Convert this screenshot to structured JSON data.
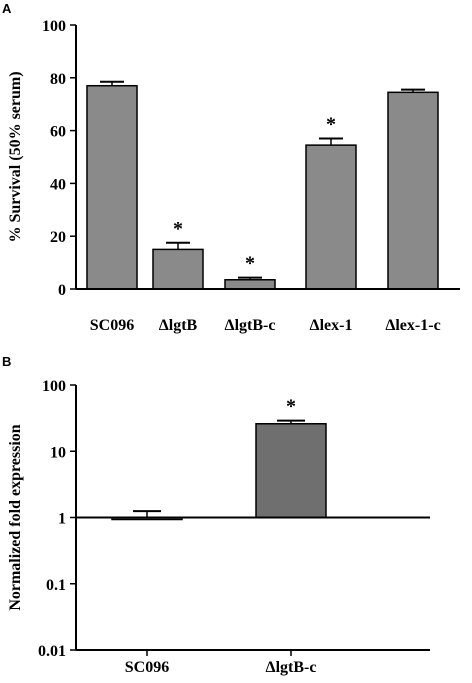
{
  "chart_data": [
    {
      "panel": "A",
      "type": "bar",
      "categories": [
        "SC096",
        "ΔlgtB",
        "ΔlgtB-c",
        "Δlex-1",
        "Δlex-1-c"
      ],
      "values": [
        77,
        15,
        3.5,
        54.5,
        74.5
      ],
      "errors": [
        1.5,
        2.5,
        0.8,
        2.5,
        1
      ],
      "significance": [
        "",
        "*",
        "*",
        "*",
        ""
      ],
      "ylabel": "% Survival (50% serum)",
      "xlabel": "",
      "title": "",
      "ylim": [
        0,
        100
      ],
      "yticks": [
        0,
        20,
        40,
        60,
        80,
        100
      ],
      "scale": "linear",
      "grid": false,
      "bar_color": "#8a8a8a"
    },
    {
      "panel": "B",
      "type": "bar",
      "categories": [
        "SC096",
        "ΔlgtB-c"
      ],
      "values": [
        1,
        26
      ],
      "errors": [
        0.25,
        3
      ],
      "significance": [
        "",
        "*"
      ],
      "ylabel": "Normalized fold expression",
      "xlabel": "",
      "title": "",
      "ylim": [
        0.01,
        100
      ],
      "yticks": [
        0.01,
        0.1,
        1,
        10,
        100
      ],
      "ytick_labels": [
        "0.01",
        "0.1",
        "1",
        "10",
        "100"
      ],
      "scale": "log",
      "baseline": 1,
      "grid": false,
      "bar_color": "#6f6f6f"
    }
  ]
}
